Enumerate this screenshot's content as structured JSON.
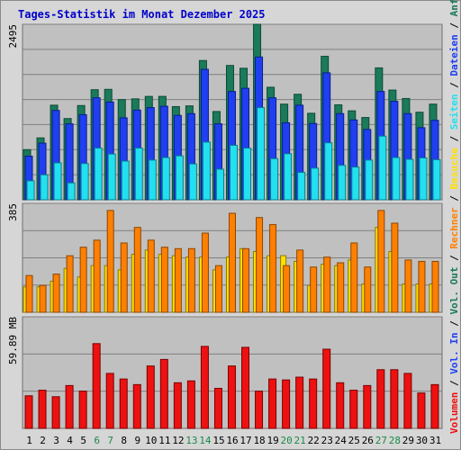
{
  "title": "Tages-Statistik im Monat Dezember 2025",
  "colors": {
    "hits": "#1a7a5a",
    "files": "#1f3ff0",
    "pages": "#22e0f0",
    "visits": "#ffe000",
    "sites": "#ff8000",
    "kbytes": "#ee1111",
    "background": "#c0c0c0",
    "title": "#0000cc",
    "weekend": "#1a8a4a",
    "day": "#000000"
  },
  "chart_data": [
    {
      "type": "bar",
      "title": "Tages-Statistik im Monat Dezember 2025",
      "categories": [
        "1",
        "2",
        "3",
        "4",
        "5",
        "6",
        "7",
        "8",
        "9",
        "10",
        "11",
        "12",
        "13",
        "14",
        "15",
        "16",
        "17",
        "18",
        "19",
        "20",
        "21",
        "22",
        "23",
        "24",
        "25",
        "26",
        "27",
        "28",
        "29",
        "30",
        "31"
      ],
      "weekend_days": [
        "6",
        "7",
        "13",
        "14",
        "20",
        "21",
        "27",
        "28"
      ],
      "ymax_label": "2495",
      "ylim": [
        0,
        2495
      ],
      "series": [
        {
          "name": "Anfragen",
          "values": [
            712,
            880,
            1345,
            1155,
            1340,
            1565,
            1570,
            1425,
            1435,
            1470,
            1470,
            1325,
            1335,
            1980,
            1255,
            1910,
            1870,
            2495,
            1600,
            1360,
            1500,
            1230,
            2040,
            1350,
            1265,
            1170,
            1875,
            1560,
            1440,
            1245,
            1360
          ]
        },
        {
          "name": "Dateien",
          "values": [
            620,
            805,
            1270,
            1080,
            1210,
            1450,
            1390,
            1165,
            1275,
            1310,
            1330,
            1200,
            1225,
            1855,
            1080,
            1540,
            1585,
            2030,
            1450,
            1095,
            1345,
            1085,
            1805,
            1225,
            1135,
            1000,
            1540,
            1400,
            1225,
            1025,
            1130
          ]
        },
        {
          "name": "Seiten",
          "values": [
            270,
            355,
            525,
            240,
            515,
            735,
            650,
            550,
            735,
            565,
            600,
            625,
            510,
            820,
            435,
            775,
            735,
            1310,
            585,
            655,
            390,
            450,
            810,
            490,
            465,
            565,
            905,
            600,
            575,
            595,
            570
          ]
        }
      ]
    },
    {
      "type": "bar",
      "ymax_label": "385",
      "ylim": [
        0,
        385
      ],
      "series": [
        {
          "name": "Besuche",
          "values": [
            90,
            90,
            110,
            155,
            125,
            165,
            165,
            150,
            205,
            220,
            205,
            200,
            195,
            195,
            150,
            195,
            225,
            215,
            200,
            200,
            180,
            95,
            170,
            165,
            185,
            100,
            300,
            215,
            100,
            100,
            100
          ]
        },
        {
          "name": "Rechner",
          "values": [
            130,
            95,
            135,
            200,
            230,
            255,
            360,
            245,
            300,
            255,
            230,
            225,
            225,
            280,
            165,
            350,
            225,
            335,
            310,
            165,
            220,
            160,
            195,
            175,
            245,
            160,
            360,
            315,
            185,
            180,
            180
          ]
        }
      ]
    },
    {
      "type": "bar",
      "ymax_label": "59.89 MB",
      "ylim": [
        0,
        59.89
      ],
      "series": [
        {
          "name": "Volumen",
          "values": [
            17.5,
            20.5,
            17.0,
            23.0,
            20.0,
            45.5,
            29.5,
            26.5,
            23.5,
            33.5,
            37.0,
            24.5,
            25.5,
            44.0,
            21.5,
            33.5,
            43.5,
            20.0,
            26.5,
            26.0,
            27.5,
            26.5,
            42.5,
            24.5,
            20.5,
            23.0,
            31.5,
            31.5,
            29.5,
            19.0,
            23.5
          ]
        }
      ]
    }
  ],
  "right_legend": [
    {
      "text": "Volumen",
      "color": "#ee1111"
    },
    {
      "text": " / ",
      "color": "#000000"
    },
    {
      "text": "Vol. In",
      "color": "#1f3ff0"
    },
    {
      "text": " / ",
      "color": "#000000"
    },
    {
      "text": "Vol. Out",
      "color": "#1a7a5a"
    },
    {
      "text": " / ",
      "color": "#000000"
    },
    {
      "text": "Rechner",
      "color": "#ff8000"
    },
    {
      "text": " / ",
      "color": "#000000"
    },
    {
      "text": "Besuche",
      "color": "#ffe000"
    },
    {
      "text": " / ",
      "color": "#000000"
    },
    {
      "text": "Seiten",
      "color": "#22e0f0"
    },
    {
      "text": " / ",
      "color": "#000000"
    },
    {
      "text": "Dateien",
      "color": "#1f3ff0"
    },
    {
      "text": " / ",
      "color": "#000000"
    },
    {
      "text": "Anfragen",
      "color": "#1a7a5a"
    }
  ]
}
